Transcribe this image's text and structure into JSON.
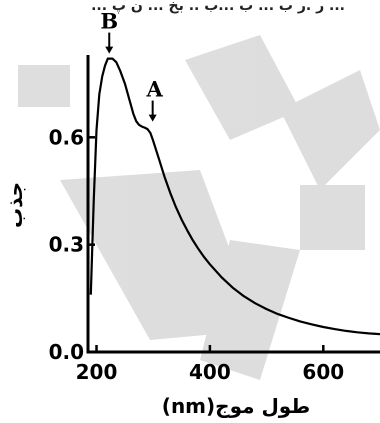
{
  "caption_fragment": "... ر .ر ب ... ب ...ب .. بخ ... ن پ ...",
  "watermark_text": "",
  "chart_data": {
    "type": "line",
    "title": "",
    "xlabel": "طول موج(nm)",
    "ylabel": "جذب",
    "xlim": [
      185,
      700
    ],
    "ylim": [
      0,
      0.83
    ],
    "xticks": [
      {
        "value": 200,
        "label": "200"
      },
      {
        "value": 400,
        "label": "400"
      },
      {
        "value": 600,
        "label": "600"
      }
    ],
    "yticks": [
      {
        "value": 0.0,
        "label": "0.0"
      },
      {
        "value": 0.3,
        "label": "0.3"
      },
      {
        "value": 0.6,
        "label": "0.6"
      }
    ],
    "grid": false,
    "legend": "none",
    "series": [
      {
        "color": "#000000",
        "points": [
          [
            190,
            0.16
          ],
          [
            195,
            0.42
          ],
          [
            200,
            0.62
          ],
          [
            205,
            0.72
          ],
          [
            210,
            0.77
          ],
          [
            215,
            0.8
          ],
          [
            220,
            0.82
          ],
          [
            228,
            0.82
          ],
          [
            235,
            0.81
          ],
          [
            242,
            0.785
          ],
          [
            250,
            0.75
          ],
          [
            258,
            0.705
          ],
          [
            265,
            0.665
          ],
          [
            270,
            0.645
          ],
          [
            275,
            0.635
          ],
          [
            280,
            0.63
          ],
          [
            285,
            0.627
          ],
          [
            290,
            0.623
          ],
          [
            295,
            0.612
          ],
          [
            300,
            0.59
          ],
          [
            310,
            0.54
          ],
          [
            320,
            0.49
          ],
          [
            330,
            0.445
          ],
          [
            340,
            0.405
          ],
          [
            350,
            0.37
          ],
          [
            360,
            0.34
          ],
          [
            370,
            0.312
          ],
          [
            380,
            0.287
          ],
          [
            390,
            0.265
          ],
          [
            400,
            0.245
          ],
          [
            420,
            0.21
          ],
          [
            440,
            0.18
          ],
          [
            460,
            0.156
          ],
          [
            480,
            0.136
          ],
          [
            500,
            0.12
          ],
          [
            520,
            0.106
          ],
          [
            540,
            0.095
          ],
          [
            560,
            0.085
          ],
          [
            580,
            0.077
          ],
          [
            600,
            0.07
          ],
          [
            620,
            0.064
          ],
          [
            640,
            0.059
          ],
          [
            660,
            0.055
          ],
          [
            680,
            0.052
          ],
          [
            700,
            0.05
          ]
        ]
      }
    ],
    "annotations": [
      {
        "label": "B",
        "x": 226,
        "y": 0.82
      },
      {
        "label": "A",
        "x": 292,
        "y": 0.63
      }
    ]
  }
}
